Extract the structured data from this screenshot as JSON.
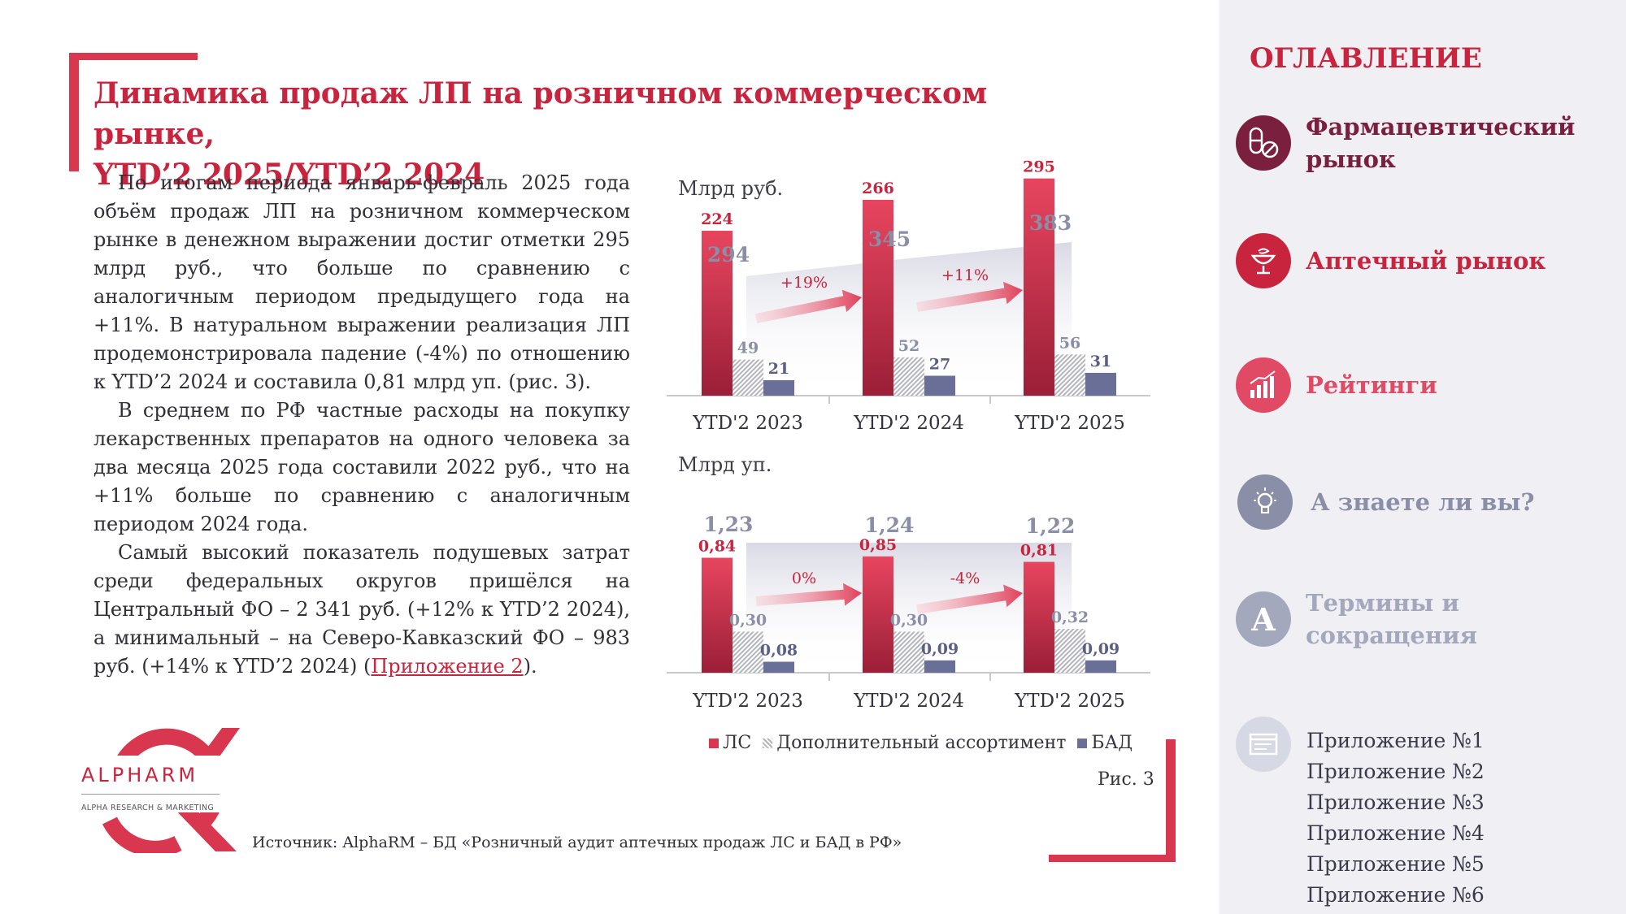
{
  "title": {
    "line1": "Динамика продаж ЛП на розничном коммерческом рынке,",
    "line2": "YTD’2 2025/YTD’2 2024"
  },
  "text": {
    "p1": "По итогам периода январь-февраль 2025 года объём продаж ЛП на розничном коммерческом рынке в денежном выражении достиг отметки 295 млрд руб., что больше по сравнению с аналогичным периодом предыдущего года на +11%. В натуральном выражении реализация ЛП продемонстрировала падение (-4%) по отношению к YTD’2 2024 и составила 0,81 млрд уп. (рис. 3).",
    "p2": "В среднем по РФ частные расходы на покупку лекарственных препаратов на одного человека за два месяца 2025 года составили 2022 руб., что на +11% больше по сравнению с аналогичным периодом 2024 года.",
    "p3_before": "Самый высокий показатель подушевых затрат среди федеральных округов пришёлся на Центральный ФО – 2 341 руб. (+12% к YTD’2 2024), а минимальный – на Северо-Кавказский ФО – 983 руб. (+14% к YTD’2 2024) (",
    "p3_link": "Приложение 2",
    "p3_after": ")."
  },
  "logo": {
    "word": "ALPHARM",
    "tagline": "ALPHA RESEARCH & MARKETING"
  },
  "source": "Источник: AlphaRM – БД «Розничный аудит аптечных продаж ЛС и БАД в РФ»",
  "figure_label": "Рис. 3",
  "chart_data": [
    {
      "type": "bar",
      "unit_label": "Млрд руб.",
      "categories": [
        "YTD'2 2023",
        "YTD'2 2024",
        "YTD'2 2025"
      ],
      "series": [
        {
          "name": "ЛС",
          "values": [
            224,
            266,
            295
          ],
          "labels": [
            "224",
            "266",
            "295"
          ]
        },
        {
          "name": "Дополнительный ассортимент",
          "values": [
            49,
            52,
            56
          ],
          "labels": [
            "49",
            "52",
            "56"
          ]
        },
        {
          "name": "БАД",
          "values": [
            21,
            27,
            31
          ],
          "labels": [
            "21",
            "27",
            "31"
          ]
        }
      ],
      "totals": [
        "294",
        "345",
        "383"
      ],
      "growth": [
        "+19%",
        "+11%"
      ],
      "ylim": [
        0,
        320
      ]
    },
    {
      "type": "bar",
      "unit_label": "Млрд уп.",
      "categories": [
        "YTD'2 2023",
        "YTD'2 2024",
        "YTD'2 2025"
      ],
      "series": [
        {
          "name": "ЛС",
          "values": [
            0.84,
            0.85,
            0.81
          ],
          "labels": [
            "0,84",
            "0,85",
            "0,81"
          ]
        },
        {
          "name": "Дополнительный ассортимент",
          "values": [
            0.3,
            0.3,
            0.32
          ],
          "labels": [
            "0,30",
            "0,30",
            "0,32"
          ]
        },
        {
          "name": "БАД",
          "values": [
            0.08,
            0.09,
            0.09
          ],
          "labels": [
            "0,08",
            "0,09",
            "0,09"
          ]
        }
      ],
      "totals": [
        "1,23",
        "1,24",
        "1,22"
      ],
      "growth": [
        "0%",
        "-4%"
      ],
      "ylim": [
        0,
        0.95
      ]
    }
  ],
  "legend": [
    "ЛС",
    "Дополнительный ассортимент",
    "БАД"
  ],
  "colors": {
    "accent": "#c8243d",
    "ls": "#d9374f",
    "bad": "#6a6f97",
    "additional": "#b4b4bc"
  },
  "sidebar": {
    "title": "ОГЛАВЛЕНИЕ",
    "items": [
      {
        "label": "Фармацевтический рынок",
        "line1": "Фармацевтический",
        "line2": "рынок",
        "icon": "pills-icon",
        "color": "#7a1f3d"
      },
      {
        "label": "Аптечный рынок",
        "icon": "pharmacy-bowl-icon",
        "color": "#c8243d"
      },
      {
        "label": "Рейтинги",
        "icon": "rating-chart-icon",
        "color": "#e04a64"
      },
      {
        "label": "А знаете ли вы?",
        "icon": "lightbulb-icon",
        "color": "#8a8ea6"
      },
      {
        "label": "Термины и сокращения",
        "line1": "Термины и",
        "line2": "сокращения",
        "icon": "letter-a-icon",
        "color": "#a4a8bc",
        "glyph": "A"
      }
    ],
    "appendix_icon": "document-icon",
    "appendices": [
      "Приложение №1",
      "Приложение №2",
      "Приложение №3",
      "Приложение №4",
      "Приложение №5",
      "Приложение №6"
    ]
  }
}
